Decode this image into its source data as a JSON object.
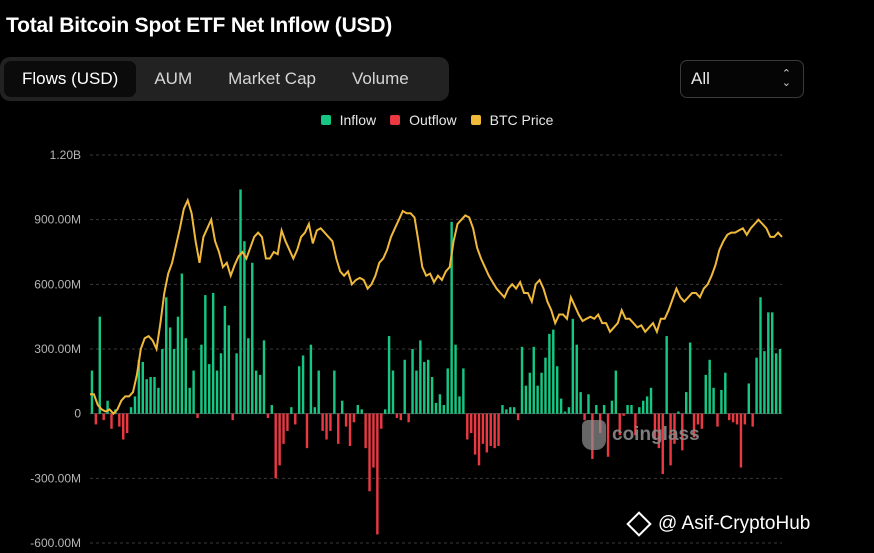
{
  "title": "Total Bitcoin Spot ETF Net Inflow (USD)",
  "tabs": [
    {
      "label": "Flows (USD)",
      "active": true
    },
    {
      "label": "AUM",
      "active": false
    },
    {
      "label": "Market Cap",
      "active": false
    },
    {
      "label": "Volume",
      "active": false
    }
  ],
  "range_select": {
    "value": "All"
  },
  "legend": [
    {
      "label": "Inflow",
      "color": "#16c784"
    },
    {
      "label": "Outflow",
      "color": "#ea3943"
    },
    {
      "label": "BTC Price",
      "color": "#f0b93a"
    }
  ],
  "watermark": "coinglass",
  "credit": "@ Asif-CryptoHub",
  "chart_data": {
    "type": "bar",
    "title": "",
    "xlabel": "",
    "ylabel": "",
    "ylim": [
      -600,
      1200
    ],
    "y_unit": "M USD",
    "y_ticks": [
      {
        "value": 1200,
        "label": "1.20B"
      },
      {
        "value": 900,
        "label": "900.00M"
      },
      {
        "value": 600,
        "label": "600.00M"
      },
      {
        "value": 300,
        "label": "300.00M"
      },
      {
        "value": 0,
        "label": "0"
      },
      {
        "value": -300,
        "label": "-300.00M"
      },
      {
        "value": -600,
        "label": "-600.00M"
      }
    ],
    "grid": true,
    "legend_position": "top-center",
    "colors": {
      "inflow": "#16c784",
      "outflow": "#ea3943",
      "price": "#f0b93a",
      "grid": "#3a3a3a"
    },
    "series": [
      {
        "name": "Inflow / Outflow",
        "values": [
          200,
          -50,
          450,
          -30,
          60,
          -70,
          20,
          -60,
          -120,
          -90,
          30,
          80,
          250,
          240,
          160,
          170,
          170,
          120,
          300,
          540,
          400,
          300,
          450,
          650,
          350,
          120,
          200,
          -20,
          320,
          550,
          230,
          560,
          200,
          280,
          500,
          410,
          -30,
          280,
          1040,
          800,
          350,
          700,
          200,
          180,
          340,
          -20,
          40,
          -300,
          -240,
          -140,
          -80,
          30,
          -50,
          220,
          270,
          -160,
          320,
          30,
          200,
          -80,
          -120,
          -80,
          200,
          -140,
          60,
          -60,
          -150,
          -40,
          40,
          20,
          -160,
          -360,
          -250,
          -560,
          -70,
          20,
          360,
          200,
          -20,
          -30,
          250,
          -40,
          300,
          200,
          340,
          240,
          250,
          170,
          50,
          90,
          40,
          210,
          890,
          320,
          80,
          210,
          -120,
          -90,
          -190,
          -240,
          -140,
          -180,
          -150,
          -160,
          -150,
          40,
          20,
          30,
          30,
          -30,
          310,
          130,
          190,
          310,
          130,
          190,
          260,
          370,
          390,
          220,
          70,
          10,
          30,
          440,
          320,
          100,
          -30,
          90,
          -210,
          40,
          -90,
          40,
          -200,
          60,
          200,
          -100,
          -10,
          40,
          40,
          -100,
          30,
          60,
          80,
          120,
          -120,
          -160,
          -280,
          360,
          -240,
          -140,
          10,
          -170,
          100,
          330,
          -110,
          -50,
          -70,
          180,
          250,
          120,
          -60,
          110,
          190,
          -30,
          -40,
          -50,
          -250,
          -50,
          140,
          -60,
          260,
          540,
          290,
          470,
          470,
          280,
          300
        ]
      },
      {
        "name": "BTC Price",
        "axis": "left-scale-approx",
        "values": [
          90,
          90,
          40,
          20,
          10,
          20,
          0,
          20,
          60,
          80,
          80,
          100,
          180,
          300,
          350,
          360,
          340,
          300,
          420,
          560,
          650,
          700,
          780,
          860,
          950,
          990,
          930,
          800,
          700,
          820,
          860,
          900,
          800,
          750,
          680,
          700,
          640,
          690,
          730,
          750,
          720,
          770,
          820,
          840,
          820,
          720,
          720,
          750,
          740,
          850,
          800,
          760,
          720,
          760,
          820,
          840,
          880,
          790,
          850,
          860,
          840,
          820,
          800,
          720,
          660,
          640,
          660,
          600,
          620,
          630,
          620,
          580,
          600,
          640,
          700,
          720,
          760,
          820,
          860,
          900,
          940,
          930,
          930,
          910,
          800,
          680,
          640,
          650,
          610,
          640,
          620,
          660,
          680,
          800,
          880,
          900,
          920,
          910,
          860,
          770,
          720,
          680,
          640,
          610,
          580,
          560,
          540,
          580,
          600,
          580,
          610,
          560,
          560,
          520,
          600,
          620,
          580,
          520,
          480,
          420,
          460,
          460,
          440,
          540,
          500,
          460,
          430,
          440,
          450,
          440,
          460,
          420,
          420,
          380,
          400,
          420,
          480,
          440,
          440,
          420,
          400,
          410,
          380,
          400,
          420,
          380,
          440,
          440,
          480,
          530,
          580,
          540,
          520,
          540,
          560,
          560,
          540,
          580,
          600,
          640,
          690,
          760,
          800,
          830,
          840,
          840,
          850,
          860,
          830,
          860,
          880,
          900,
          880,
          860,
          820,
          820,
          840,
          820
        ]
      }
    ]
  }
}
